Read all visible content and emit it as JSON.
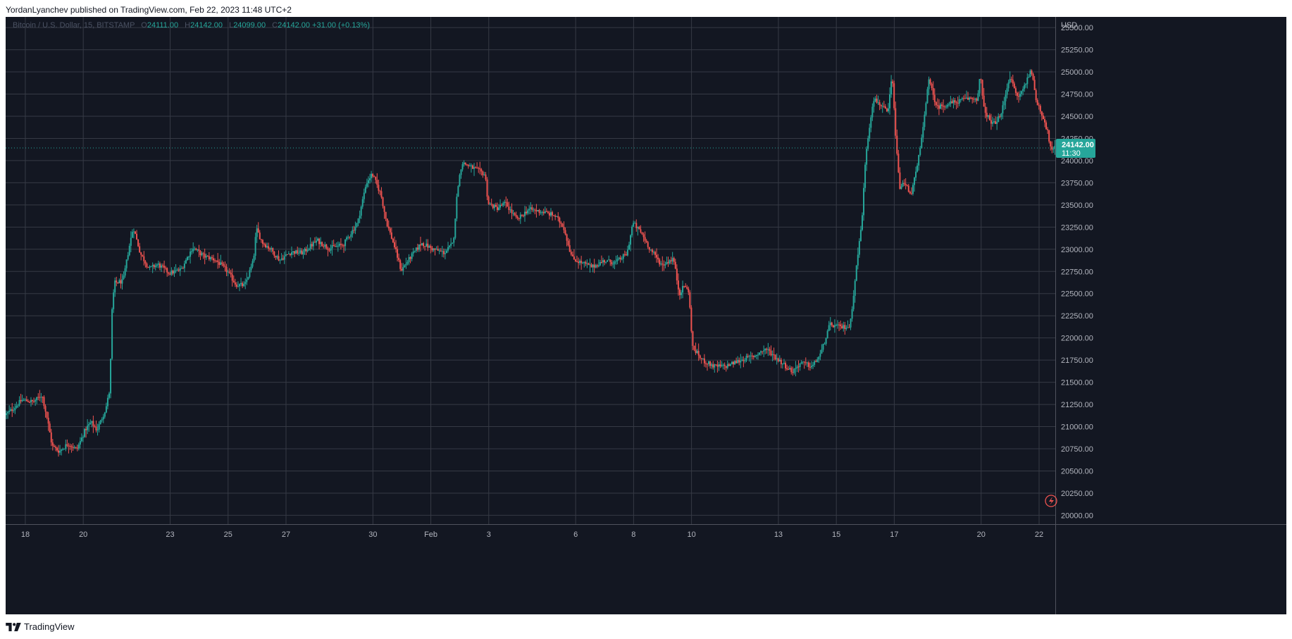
{
  "header": {
    "published_text": "YordanLyanchev published on TradingView.com, Feb 22, 2023 11:48 UTC+2"
  },
  "footer": {
    "brand": "TradingView",
    "logo_icon": "tradingview-logo-icon"
  },
  "legend": {
    "symbol": "Bitcoin / U.S. Dollar, 15, BITSTAMP",
    "o_key": "O",
    "o_val": "24111.00",
    "h_key": "H",
    "h_val": "24142.00",
    "l_key": "L",
    "l_val": "24099.00",
    "c_key": "C",
    "c_val": "24142.00",
    "change": "+31.00 (+0.13%)"
  },
  "colors": {
    "background": "#131722",
    "grid": "#363a45",
    "up": "#26a69a",
    "down": "#ef5350",
    "axis_text": "#b2b5be",
    "price_tag": "#26a69a"
  },
  "chart_data": {
    "type": "candlestick",
    "symbol": "Bitcoin / U.S. Dollar, 15, BITSTAMP",
    "interval": "15",
    "currency_label": "USD",
    "y_axis": {
      "label": "USD",
      "ticks": [
        "25500.00",
        "25250.00",
        "25000.00",
        "24750.00",
        "24500.00",
        "24250.00",
        "24000.00",
        "23750.00",
        "23500.00",
        "23250.00",
        "23000.00",
        "22750.00",
        "22500.00",
        "22250.00",
        "22000.00",
        "21750.00",
        "21500.00",
        "21250.00",
        "21000.00",
        "20750.00",
        "20500.00",
        "20250.00",
        "20000.00"
      ],
      "range": [
        19900,
        25620
      ]
    },
    "x_axis": {
      "ticks": [
        {
          "label": "18",
          "day": 0
        },
        {
          "label": "20",
          "day": 2
        },
        {
          "label": "23",
          "day": 5
        },
        {
          "label": "25",
          "day": 7
        },
        {
          "label": "27",
          "day": 9
        },
        {
          "label": "30",
          "day": 12
        },
        {
          "label": "Feb",
          "day": 14
        },
        {
          "label": "3",
          "day": 16
        },
        {
          "label": "6",
          "day": 19
        },
        {
          "label": "8",
          "day": 21
        },
        {
          "label": "10",
          "day": 23
        },
        {
          "label": "13",
          "day": 26
        },
        {
          "label": "15",
          "day": 28
        },
        {
          "label": "17",
          "day": 30
        },
        {
          "label": "20",
          "day": 33
        },
        {
          "label": "22",
          "day": 35
        }
      ],
      "range_days": [
        -0.68,
        35.56
      ]
    },
    "price_path": [
      [
        -0.68,
        21130
      ],
      [
        -0.4,
        21200
      ],
      [
        -0.1,
        21300
      ],
      [
        0.3,
        21280
      ],
      [
        0.6,
        21360
      ],
      [
        0.8,
        21060
      ],
      [
        0.95,
        20780
      ],
      [
        1.2,
        20720
      ],
      [
        1.5,
        20810
      ],
      [
        1.8,
        20740
      ],
      [
        2.1,
        20970
      ],
      [
        2.3,
        21050
      ],
      [
        2.5,
        20960
      ],
      [
        2.8,
        21200
      ],
      [
        2.95,
        21430
      ],
      [
        3.0,
        22230
      ],
      [
        3.1,
        22620
      ],
      [
        3.4,
        22640
      ],
      [
        3.6,
        23010
      ],
      [
        3.75,
        23250
      ],
      [
        4.0,
        22950
      ],
      [
        4.3,
        22780
      ],
      [
        4.6,
        22830
      ],
      [
        5.0,
        22730
      ],
      [
        5.4,
        22770
      ],
      [
        5.8,
        23020
      ],
      [
        6.2,
        22920
      ],
      [
        6.6,
        22880
      ],
      [
        7.0,
        22750
      ],
      [
        7.3,
        22600
      ],
      [
        7.6,
        22590
      ],
      [
        7.9,
        22870
      ],
      [
        8.0,
        23230
      ],
      [
        8.2,
        23080
      ],
      [
        8.5,
        23000
      ],
      [
        8.8,
        22880
      ],
      [
        9.2,
        22970
      ],
      [
        9.6,
        22960
      ],
      [
        10.1,
        23100
      ],
      [
        10.5,
        23010
      ],
      [
        11.0,
        23050
      ],
      [
        11.5,
        23300
      ],
      [
        11.8,
        23750
      ],
      [
        12.0,
        23850
      ],
      [
        12.3,
        23620
      ],
      [
        12.5,
        23300
      ],
      [
        12.8,
        23000
      ],
      [
        13.0,
        22760
      ],
      [
        13.3,
        22900
      ],
      [
        13.7,
        23070
      ],
      [
        14.1,
        23000
      ],
      [
        14.5,
        22960
      ],
      [
        14.8,
        23070
      ],
      [
        14.95,
        23700
      ],
      [
        15.1,
        23980
      ],
      [
        15.4,
        23930
      ],
      [
        15.7,
        23880
      ],
      [
        15.9,
        23840
      ],
      [
        16.0,
        23520
      ],
      [
        16.3,
        23460
      ],
      [
        16.6,
        23520
      ],
      [
        17.0,
        23330
      ],
      [
        17.4,
        23450
      ],
      [
        17.9,
        23420
      ],
      [
        18.3,
        23380
      ],
      [
        18.6,
        23260
      ],
      [
        18.9,
        22900
      ],
      [
        19.2,
        22850
      ],
      [
        19.6,
        22800
      ],
      [
        20.0,
        22870
      ],
      [
        20.4,
        22850
      ],
      [
        20.8,
        22950
      ],
      [
        21.0,
        23300
      ],
      [
        21.3,
        23180
      ],
      [
        21.6,
        23000
      ],
      [
        22.0,
        22820
      ],
      [
        22.4,
        22900
      ],
      [
        22.6,
        22500
      ],
      [
        22.8,
        22600
      ],
      [
        22.95,
        22480
      ],
      [
        23.05,
        21900
      ],
      [
        23.4,
        21750
      ],
      [
        23.8,
        21680
      ],
      [
        24.2,
        21680
      ],
      [
        24.8,
        21760
      ],
      [
        25.2,
        21800
      ],
      [
        25.6,
        21880
      ],
      [
        26.0,
        21760
      ],
      [
        26.5,
        21620
      ],
      [
        26.8,
        21720
      ],
      [
        27.2,
        21680
      ],
      [
        27.5,
        21830
      ],
      [
        27.8,
        22150
      ],
      [
        28.2,
        22120
      ],
      [
        28.5,
        22130
      ],
      [
        28.7,
        22750
      ],
      [
        28.9,
        23300
      ],
      [
        29.05,
        24100
      ],
      [
        29.3,
        24700
      ],
      [
        29.6,
        24620
      ],
      [
        29.8,
        24520
      ],
      [
        29.95,
        24970
      ],
      [
        30.05,
        24400
      ],
      [
        30.2,
        23700
      ],
      [
        30.4,
        23740
      ],
      [
        30.6,
        23620
      ],
      [
        30.8,
        23900
      ],
      [
        31.0,
        24300
      ],
      [
        31.2,
        24920
      ],
      [
        31.5,
        24600
      ],
      [
        32.0,
        24650
      ],
      [
        32.6,
        24700
      ],
      [
        32.9,
        24700
      ],
      [
        33.0,
        24980
      ],
      [
        33.1,
        24600
      ],
      [
        33.4,
        24400
      ],
      [
        33.7,
        24500
      ],
      [
        34.0,
        24950
      ],
      [
        34.3,
        24700
      ],
      [
        34.6,
        24900
      ],
      [
        34.75,
        25050
      ],
      [
        34.9,
        24700
      ],
      [
        35.1,
        24550
      ],
      [
        35.3,
        24350
      ],
      [
        35.45,
        24100
      ],
      [
        35.56,
        24142
      ]
    ],
    "last_price": "24142.00",
    "countdown": "11:30",
    "grid": true,
    "legend_position": "top-left"
  }
}
